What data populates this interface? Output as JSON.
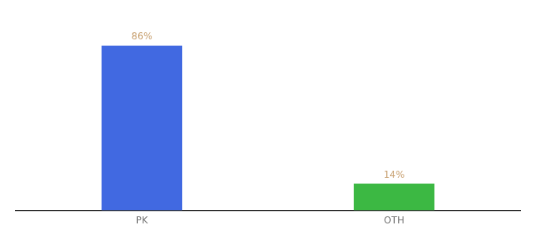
{
  "chart_data": {
    "type": "bar",
    "categories": [
      "PK",
      "OTH"
    ],
    "values": [
      86,
      14
    ],
    "colors": [
      "#4169e1",
      "#3cb843"
    ],
    "value_labels": [
      "86%",
      "14%"
    ],
    "data_labels": true,
    "ylim": [
      0,
      100
    ],
    "tick_labels": "x",
    "grid": false
  }
}
